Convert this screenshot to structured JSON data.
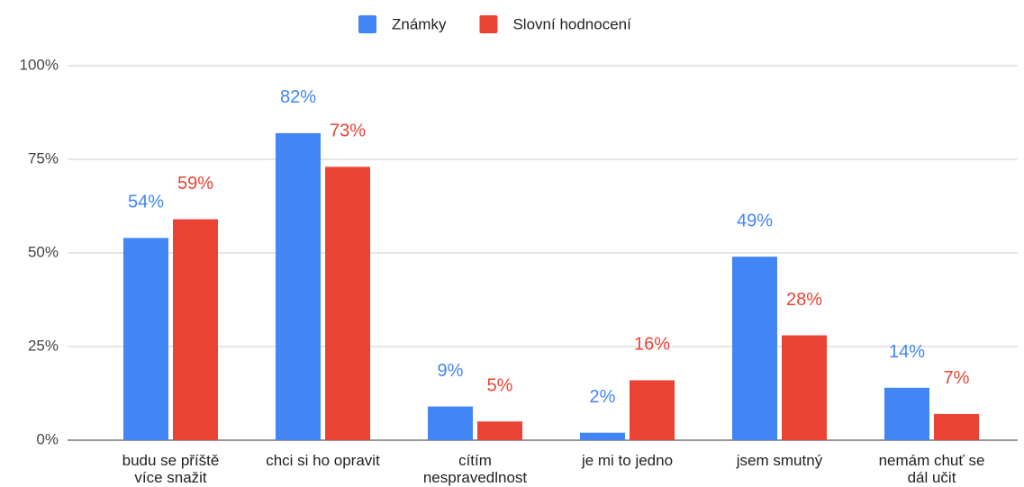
{
  "chart_data": {
    "type": "bar",
    "categories": [
      "budu se příště více snažit",
      "chci si ho opravit",
      "cítím nespravedlnost",
      "je mi to jedno",
      "jsem smutný",
      "nemám chuť se dál učit"
    ],
    "series": [
      {
        "name": "Známky",
        "color": "#4285f4",
        "values": [
          54,
          82,
          9,
          2,
          49,
          14
        ],
        "value_labels": [
          "54%",
          "82%",
          "9%",
          "2%",
          "49%",
          "14%"
        ]
      },
      {
        "name": "Slovní hodnocení",
        "color": "#ea4335",
        "values": [
          59,
          73,
          5,
          16,
          28,
          7
        ],
        "value_labels": [
          "59%",
          "73%",
          "5%",
          "16%",
          "28%",
          "7%"
        ]
      }
    ],
    "ylim": [
      0,
      100
    ],
    "yticks": [
      {
        "value": 0,
        "label": "0%"
      },
      {
        "value": 25,
        "label": "25%"
      },
      {
        "value": 50,
        "label": "50%"
      },
      {
        "value": 75,
        "label": "75%"
      },
      {
        "value": 100,
        "label": "100%"
      }
    ],
    "grid": true,
    "legend": "top"
  }
}
